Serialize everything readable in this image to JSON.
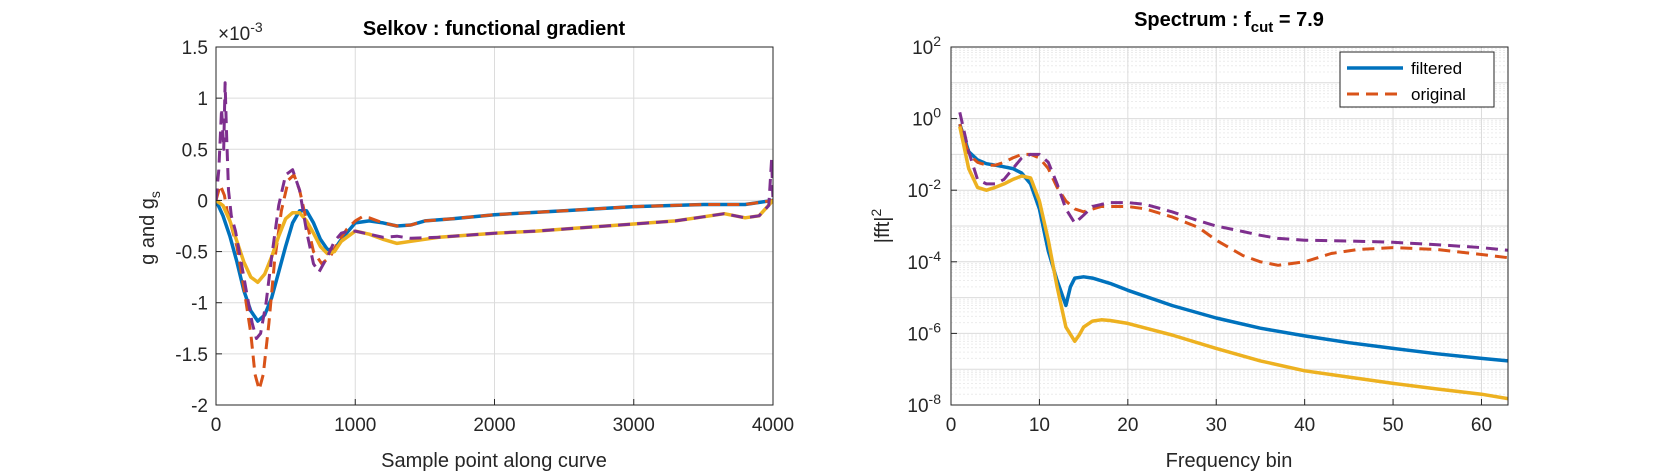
{
  "chart_data": [
    {
      "type": "line",
      "title": "Selkov : functional gradient",
      "xlabel": "Sample point along curve",
      "ylabel_main": "g and g",
      "ylabel_sub": "s",
      "xlim": [
        0,
        4000
      ],
      "ylim": [
        -2,
        1.5
      ],
      "y_exponent": "×10",
      "y_exponent_power": "-3",
      "xticks": [
        "0",
        "1000",
        "2000",
        "3000",
        "4000"
      ],
      "yticks": [
        "-2",
        "-1.5",
        "-1",
        "-0.5",
        "0",
        "0.5",
        "1",
        "1.5"
      ],
      "grid": true,
      "scale": "linear",
      "series": [
        {
          "color": "#0072BD",
          "style": "solid",
          "x": [
            0,
            50,
            100,
            150,
            200,
            250,
            300,
            350,
            400,
            450,
            500,
            550,
            600,
            650,
            700,
            750,
            800,
            850,
            900,
            1000,
            1100,
            1200,
            1300,
            1400,
            1500,
            1700,
            2000,
            2500,
            3000,
            3500,
            3800,
            4000
          ],
          "y": [
            0,
            -0.15,
            -0.35,
            -0.6,
            -0.88,
            -1.08,
            -1.18,
            -1.12,
            -0.95,
            -0.7,
            -0.45,
            -0.22,
            -0.1,
            -0.1,
            -0.22,
            -0.38,
            -0.48,
            -0.48,
            -0.38,
            -0.22,
            -0.2,
            -0.22,
            -0.25,
            -0.24,
            -0.2,
            -0.18,
            -0.14,
            -0.1,
            -0.06,
            -0.04,
            -0.04,
            0
          ]
        },
        {
          "color": "#D95319",
          "style": "dashed",
          "x": [
            0,
            30,
            60,
            80,
            100,
            150,
            200,
            250,
            280,
            310,
            340,
            380,
            420,
            470,
            520,
            560,
            600,
            650,
            700,
            760,
            820,
            880,
            940,
            1000,
            1050,
            1100,
            1200,
            1300,
            1400,
            1500,
            1700,
            2000,
            2500,
            3000,
            3500,
            3800,
            4000
          ],
          "y": [
            0,
            0.15,
            0.05,
            -0.1,
            -0.2,
            -0.45,
            -0.85,
            -1.3,
            -1.7,
            -1.85,
            -1.7,
            -1.2,
            -0.6,
            -0.1,
            0.2,
            0.25,
            0.1,
            -0.2,
            -0.5,
            -0.62,
            -0.55,
            -0.4,
            -0.28,
            -0.2,
            -0.16,
            -0.17,
            -0.22,
            -0.25,
            -0.24,
            -0.2,
            -0.18,
            -0.14,
            -0.1,
            -0.06,
            -0.04,
            -0.04,
            0
          ]
        },
        {
          "color": "#EDB120",
          "style": "solid",
          "x": [
            0,
            50,
            100,
            150,
            200,
            250,
            300,
            350,
            400,
            450,
            500,
            550,
            600,
            650,
            700,
            750,
            800,
            850,
            900,
            1000,
            1100,
            1200,
            1300,
            1400,
            1600,
            1800,
            2000,
            2300,
            2600,
            3000,
            3300,
            3500,
            3650,
            3800,
            3900,
            4000
          ],
          "y": [
            0,
            -0.05,
            -0.2,
            -0.4,
            -0.6,
            -0.75,
            -0.8,
            -0.72,
            -0.55,
            -0.35,
            -0.18,
            -0.12,
            -0.12,
            -0.2,
            -0.32,
            -0.45,
            -0.52,
            -0.5,
            -0.4,
            -0.3,
            -0.33,
            -0.38,
            -0.42,
            -0.4,
            -0.36,
            -0.34,
            -0.32,
            -0.3,
            -0.27,
            -0.23,
            -0.2,
            -0.16,
            -0.13,
            -0.17,
            -0.15,
            0
          ]
        },
        {
          "color": "#7E2F8E",
          "style": "dashed",
          "x": [
            0,
            20,
            40,
            55,
            65,
            75,
            90,
            110,
            140,
            180,
            220,
            260,
            290,
            320,
            360,
            400,
            450,
            500,
            550,
            600,
            650,
            700,
            740,
            800,
            850,
            900,
            950,
            1000,
            1100,
            1200,
            1300,
            1400,
            1600,
            1800,
            2000,
            2300,
            2600,
            3000,
            3300,
            3500,
            3650,
            3800,
            3900,
            3970,
            3990,
            4000
          ],
          "y": [
            0,
            0.3,
            0.9,
            0.5,
            1.15,
            0.7,
            0.1,
            -0.15,
            -0.3,
            -0.6,
            -0.9,
            -1.2,
            -1.35,
            -1.3,
            -1.0,
            -0.55,
            -0.05,
            0.25,
            0.3,
            0.1,
            -0.3,
            -0.62,
            -0.7,
            -0.55,
            -0.4,
            -0.32,
            -0.3,
            -0.3,
            -0.33,
            -0.36,
            -0.35,
            -0.37,
            -0.36,
            -0.34,
            -0.32,
            -0.3,
            -0.27,
            -0.23,
            -0.2,
            -0.16,
            -0.13,
            -0.17,
            -0.15,
            -0.05,
            0.4,
            0
          ]
        }
      ]
    },
    {
      "type": "line",
      "title_main": "Spectrum : f",
      "title_sub": "cut",
      "title_tail": " = 7.9",
      "xlabel": "Frequency bin",
      "ylabel_main": "|fft|",
      "ylabel_sup": "2",
      "xlim": [
        0,
        63
      ],
      "ylim_exp": [
        -8,
        2
      ],
      "scale": "log",
      "grid": true,
      "xticks": [
        "0",
        "10",
        "20",
        "30",
        "40",
        "50",
        "60"
      ],
      "yticks": [
        {
          "base": "10",
          "exp": "2"
        },
        {
          "base": "10",
          "exp": "0"
        },
        {
          "base": "10",
          "exp": "-2"
        },
        {
          "base": "10",
          "exp": "-4"
        },
        {
          "base": "10",
          "exp": "-6"
        },
        {
          "base": "10",
          "exp": "-8"
        }
      ],
      "legend": {
        "position": "top-right",
        "entries": [
          "filtered",
          "original"
        ]
      },
      "series": [
        {
          "name": "filtered",
          "color": "#0072BD",
          "style": "solid",
          "x": [
            1,
            2,
            3,
            4,
            5,
            6,
            7,
            8,
            9,
            10,
            11,
            12,
            13,
            13.5,
            14,
            15,
            16,
            18,
            20,
            25,
            30,
            35,
            40,
            45,
            50,
            55,
            60,
            63
          ],
          "y": [
            0.7,
            0.12,
            0.07,
            0.055,
            0.05,
            0.045,
            0.04,
            0.03,
            0.015,
            0.003,
            0.0002,
            3e-05,
            6e-06,
            2e-05,
            3.5e-05,
            3.8e-05,
            3.5e-05,
            2.5e-05,
            1.6e-05,
            6e-06,
            2.7e-06,
            1.4e-06,
            8.5e-07,
            5.5e-07,
            3.8e-07,
            2.7e-07,
            2e-07,
            1.7e-07
          ]
        },
        {
          "name": "original",
          "color": "#D95319",
          "style": "dashed",
          "x": [
            1,
            2,
            3,
            4,
            5,
            6,
            7,
            8,
            9,
            10,
            11,
            12,
            13,
            14,
            15,
            17,
            20,
            22,
            25,
            28,
            30,
            33,
            35,
            37,
            40,
            43,
            46,
            50,
            55,
            60,
            63
          ],
          "y": [
            0.7,
            0.1,
            0.06,
            0.05,
            0.05,
            0.06,
            0.08,
            0.1,
            0.1,
            0.08,
            0.04,
            0.012,
            0.005,
            0.003,
            0.0025,
            0.0035,
            0.0035,
            0.003,
            0.0018,
            0.0009,
            0.0004,
            0.00015,
            0.0001,
            8e-05,
            0.0001,
            0.00017,
            0.00022,
            0.00025,
            0.00022,
            0.00016,
            0.00013
          ]
        },
        {
          "color": "#EDB120",
          "style": "solid",
          "x": [
            1,
            2,
            3,
            4,
            5,
            6,
            7,
            8,
            9,
            10,
            11,
            12,
            13,
            14,
            14.5,
            15,
            16,
            17,
            18,
            20,
            25,
            30,
            35,
            40,
            45,
            50,
            55,
            60,
            63
          ],
          "y": [
            0.6,
            0.04,
            0.012,
            0.01,
            0.012,
            0.015,
            0.02,
            0.025,
            0.022,
            0.005,
            0.0004,
            2e-05,
            1.5e-06,
            6e-07,
            9e-07,
            1.5e-06,
            2.2e-06,
            2.4e-06,
            2.3e-06,
            1.9e-06,
            9e-07,
            3.8e-07,
            1.7e-07,
            9e-08,
            6e-08,
            4e-08,
            2.8e-08,
            2e-08,
            1.5e-08
          ]
        },
        {
          "color": "#7E2F8E",
          "style": "dashed",
          "x": [
            1,
            2,
            3,
            4,
            5,
            6,
            7,
            8,
            9,
            10,
            11,
            12,
            13,
            14,
            15,
            16,
            17,
            18,
            20,
            22,
            25,
            28,
            30,
            33,
            35,
            37,
            40,
            45,
            50,
            55,
            60,
            63
          ],
          "y": [
            1.5,
            0.12,
            0.02,
            0.015,
            0.015,
            0.02,
            0.04,
            0.08,
            0.1,
            0.1,
            0.06,
            0.015,
            0.003,
            0.0012,
            0.002,
            0.0035,
            0.004,
            0.0045,
            0.0045,
            0.004,
            0.0025,
            0.0014,
            0.001,
            0.0007,
            0.00055,
            0.00045,
            0.0004,
            0.00038,
            0.00035,
            0.0003,
            0.00025,
            0.00021
          ]
        }
      ]
    }
  ]
}
